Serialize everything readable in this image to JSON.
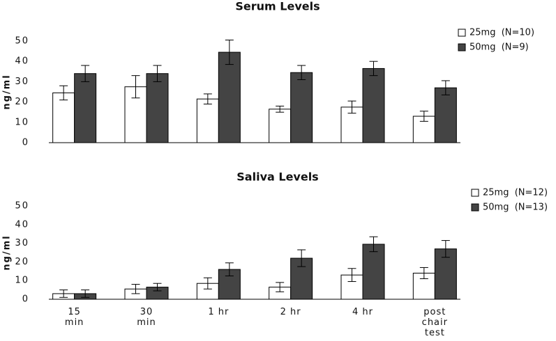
{
  "chart_data": [
    {
      "type": "bar",
      "title": "Serum Levels",
      "y_label": "ng/ml",
      "categories": [
        null,
        null,
        null,
        null,
        null,
        null
      ],
      "series": [
        {
          "name": "25mg  (N=10)",
          "color": "#ffffff",
          "values": [
            24.5,
            27.5,
            21.5,
            16.5,
            17.5,
            13
          ],
          "errors": [
            3.5,
            5.5,
            2.5,
            1.5,
            3,
            2.5
          ]
        },
        {
          "name": "50mg  (N=9)",
          "color": "#444444",
          "values": [
            34,
            34,
            44.5,
            34.5,
            36.5,
            27
          ],
          "errors": [
            4,
            4,
            6,
            3.5,
            3.5,
            3.5
          ]
        }
      ],
      "ylim": [
        0,
        50
      ],
      "yticks": [
        0,
        10,
        20,
        30,
        40,
        50
      ],
      "legend": "top-right"
    },
    {
      "type": "bar",
      "title": "Saliva  Levels",
      "y_label": "ng/ml",
      "categories": [
        "15\nmin",
        "30\nmin",
        "1  hr",
        "2  hr",
        "4  hr",
        "post\nchair\ntest"
      ],
      "series": [
        {
          "name": "25mg  (N=12)",
          "color": "#ffffff",
          "values": [
            3,
            5.5,
            8.5,
            6.5,
            13,
            14
          ],
          "errors": [
            2,
            2.5,
            3,
            2.5,
            3.5,
            3
          ]
        },
        {
          "name": "50mg  (N=13)",
          "color": "#444444",
          "values": [
            3,
            6.5,
            16,
            22,
            29.5,
            27
          ],
          "errors": [
            2,
            2,
            3.5,
            4.5,
            4,
            4.5
          ]
        }
      ],
      "ylim": [
        0,
        50
      ],
      "yticks": [
        0,
        10,
        20,
        30,
        40,
        50
      ],
      "legend": "top-right"
    }
  ]
}
